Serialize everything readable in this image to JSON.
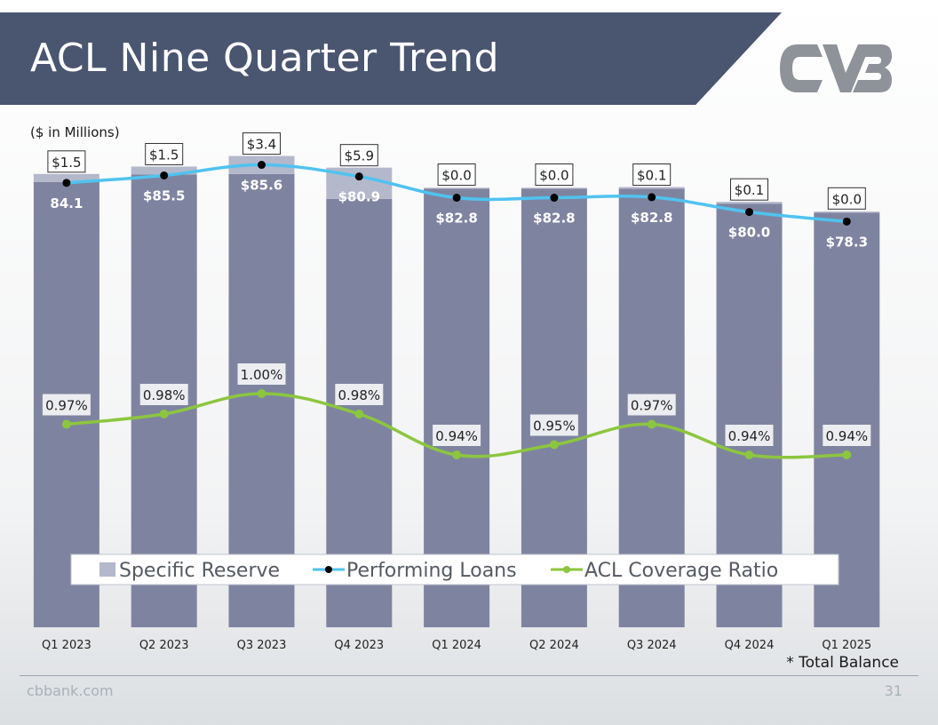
{
  "header": {
    "title": "ACL Nine Quarter Trend"
  },
  "logo": {
    "name": "cvb-logo-icon",
    "color": "#8e9399"
  },
  "units_note": "($ in Millions)",
  "footnote": "* Total Balance",
  "footer": {
    "site": "cbbank.com",
    "page_number": "31"
  },
  "colors": {
    "header": "#4a5570",
    "performing_bar": "#7e84a0",
    "specific_bar": "#b4b8cb",
    "performing_line": "#4fc3f0",
    "coverage_line": "#8cc63f"
  },
  "chart_data": {
    "type": "bar",
    "categories": [
      "Q1 2023",
      "Q2 2023",
      "Q3 2023",
      "Q4 2023",
      "Q1 2024",
      "Q2 2024",
      "Q3 2024",
      "Q4 2024",
      "Q1 2025"
    ],
    "series": [
      {
        "name": "Performing Loans",
        "type": "bar-stack-base+line",
        "values": [
          84.1,
          85.5,
          85.6,
          80.9,
          82.8,
          82.8,
          82.8,
          80.0,
          78.3
        ],
        "labels": [
          "84.1",
          "$85.5",
          "$85.6",
          "$80.9",
          "$82.8",
          "$82.8",
          "$82.8",
          "$80.0",
          "$78.3"
        ]
      },
      {
        "name": "Specific Reserve",
        "type": "bar-stack-top",
        "values": [
          1.5,
          1.5,
          3.4,
          5.9,
          0.0,
          0.0,
          0.1,
          0.1,
          0.0
        ],
        "labels": [
          "$1.5",
          "$1.5",
          "$3.4",
          "$5.9",
          "$0.0",
          "$0.0",
          "$0.1",
          "$0.1",
          "$0.0"
        ]
      },
      {
        "name": "ACL Coverage Ratio",
        "type": "line",
        "values": [
          0.97,
          0.98,
          1.0,
          0.98,
          0.94,
          0.95,
          0.97,
          0.94,
          0.94
        ],
        "labels": [
          "0.97%",
          "0.98%",
          "1.00%",
          "0.98%",
          "0.94%",
          "0.95%",
          "0.97%",
          "0.94%",
          "0.94%"
        ]
      }
    ],
    "legend": [
      "Specific Reserve",
      "Performing Loans",
      "ACL Coverage Ratio"
    ],
    "legend_position": "bottom-inside",
    "grid": false
  }
}
